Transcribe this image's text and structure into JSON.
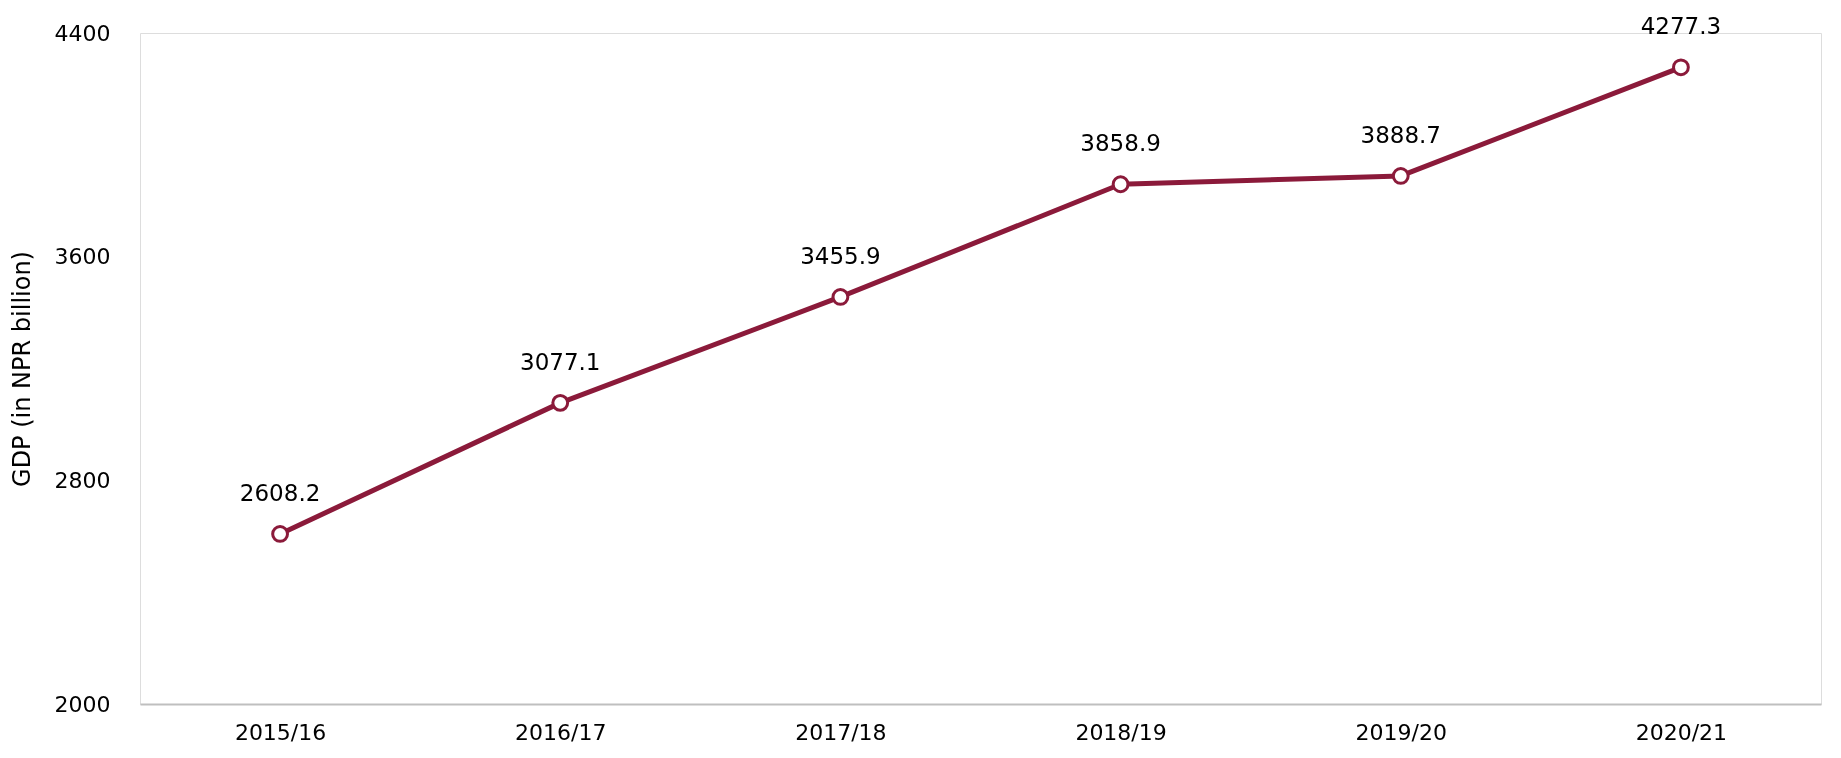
{
  "chart_data": {
    "type": "line",
    "ylabel": "GDP (in NPR billion)",
    "categories": [
      "2015/16",
      "2016/17",
      "2017/18",
      "2018/19",
      "2019/20",
      "2020/21"
    ],
    "series": [
      {
        "color": "#8b1a3a",
        "values": [
          2608.2,
          3077.1,
          3455.9,
          3858.9,
          3888.7,
          4277.3
        ]
      }
    ],
    "ylim": [
      2000,
      4400
    ],
    "yticks": [
      2000,
      2800,
      3600,
      4400
    ],
    "grid": false,
    "legend": false,
    "marker": "circle",
    "line_style": "solid",
    "data_labels": true
  }
}
